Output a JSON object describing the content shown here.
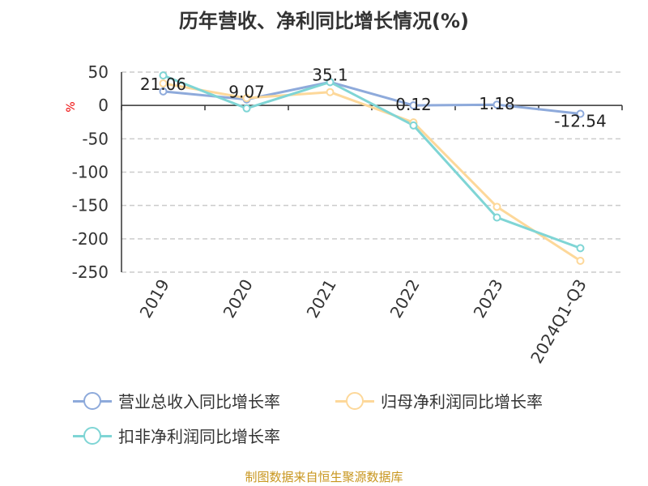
{
  "chart_data": {
    "type": "line",
    "title": "历年营收、净利同比增长情况(%)",
    "ylabel": "%",
    "ylim": [
      -250,
      50
    ],
    "yticks": [
      50,
      0,
      -50,
      -100,
      -150,
      -200,
      -250
    ],
    "grid": true,
    "legend_position": "bottom",
    "categories": [
      "2019",
      "2020",
      "2021",
      "2022",
      "2023",
      "2024Q1-Q3"
    ],
    "series": [
      {
        "name": "营业总收入同比增长率",
        "color": "#8eaadb",
        "values": [
          21.06,
          9.07,
          35.1,
          0.12,
          1.18,
          -12.54
        ],
        "labels": [
          "21.06",
          "9.07",
          "35.1",
          "0.12",
          "1.18",
          "-12.54"
        ]
      },
      {
        "name": "归母净利润同比增长率",
        "color": "#fdd89a",
        "values": [
          33,
          11,
          20,
          -25.5,
          -152,
          -233
        ]
      },
      {
        "name": "扣非净利润同比增长率",
        "color": "#7fd5d5",
        "values": [
          45,
          -4.4,
          35,
          -30,
          -168,
          -214
        ]
      }
    ]
  },
  "footer": "制图数据来自恒生聚源数据库"
}
